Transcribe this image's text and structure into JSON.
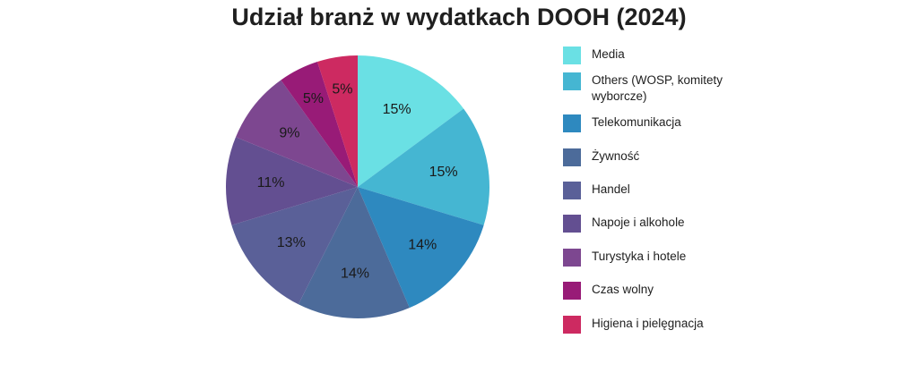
{
  "chart_data": {
    "type": "pie",
    "title": "Udział branż w wydatkach DOOH (2024)",
    "slices": [
      {
        "name": "Media",
        "value": 15,
        "label": "15%",
        "color": "#6ae0e4"
      },
      {
        "name": "Others (WOSP, komitety wyborcze)",
        "value": 15,
        "label": "15%",
        "color": "#45b6d2"
      },
      {
        "name": "Telekomunikacja",
        "value": 14,
        "label": "14%",
        "color": "#2e89bf"
      },
      {
        "name": "Żywność",
        "value": 14,
        "label": "14%",
        "color": "#4c6b9a"
      },
      {
        "name": "Handel",
        "value": 13,
        "label": "13%",
        "color": "#5a6098"
      },
      {
        "name": "Napoje i alkohole",
        "value": 11,
        "label": "11%",
        "color": "#634f91"
      },
      {
        "name": "Turystyka i hotele",
        "value": 9,
        "label": "9%",
        "color": "#7d4790"
      },
      {
        "name": "Czas wolny",
        "value": 5,
        "label": "5%",
        "color": "#981b77"
      },
      {
        "name": "Higiena i pielęgnacja",
        "value": 5,
        "label": "5%",
        "color": "#cd2a61"
      }
    ],
    "legend_position": "right"
  }
}
